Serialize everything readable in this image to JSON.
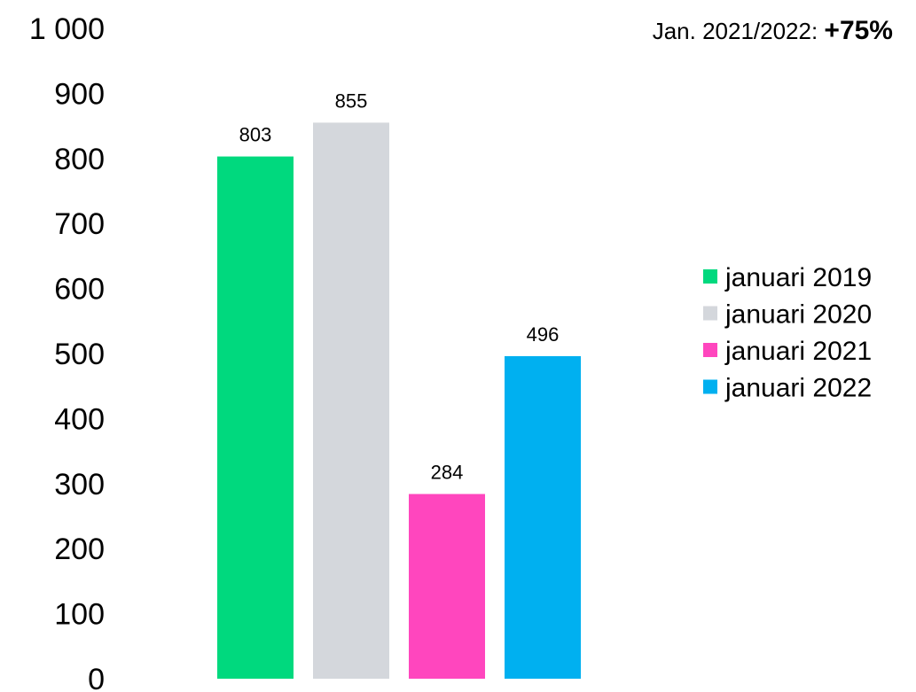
{
  "chart_data": {
    "type": "bar",
    "series": [
      {
        "name": "januari 2019",
        "values": [
          803
        ],
        "color": "#00D97E"
      },
      {
        "name": "januari 2020",
        "values": [
          855
        ],
        "color": "#D4D7DC"
      },
      {
        "name": "januari 2021",
        "values": [
          284
        ],
        "color": "#FF46BE"
      },
      {
        "name": "januari 2022",
        "values": [
          496
        ],
        "color": "#00B0F0"
      }
    ],
    "ylim": [
      0,
      1000
    ],
    "yticks": [
      "0",
      "100",
      "200",
      "300",
      "400",
      "500",
      "600",
      "700",
      "800",
      "900",
      "1 000"
    ],
    "grid": false,
    "legend_position": "right",
    "annotation": {
      "prefix": "Jan. 2021/2022: ",
      "value": "+75%"
    }
  }
}
